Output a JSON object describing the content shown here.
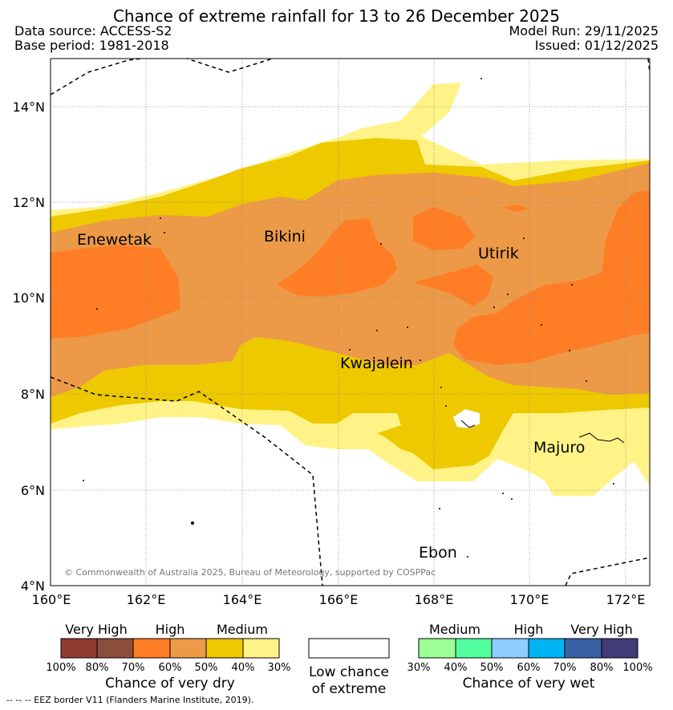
{
  "header": {
    "title": "Chance of extreme rainfall for 13 to 26 December 2025",
    "data_source": "Data source: ACCESS-S2",
    "base_period": "Base period: 1981-2018",
    "model_run": "Model Run: 29/11/2025",
    "issued": "Issued: 01/12/2025"
  },
  "map": {
    "lat_labels": [
      "14°N",
      "12°N",
      "10°N",
      "8°N",
      "6°N",
      "4°N"
    ],
    "lon_labels": [
      "160°E",
      "162°E",
      "164°E",
      "166°E",
      "168°E",
      "170°E",
      "172°E"
    ],
    "places": [
      "Enewetak",
      "Bikini",
      "Utirik",
      "Kwajalein",
      "Majuro",
      "Ebon"
    ],
    "copyright": "© Commonwealth of Australia 2025, Bureau of Meteorology, supported by COSPPac"
  },
  "legend": {
    "dry": {
      "levels": [
        "Very High",
        "High",
        "Medium"
      ],
      "ticks": [
        "100%",
        "80%",
        "70%",
        "60%",
        "50%",
        "40%",
        "30%"
      ],
      "caption": "Chance of very dry",
      "colors": [
        "#8f3b2f",
        "#8c4e3c",
        "#ff7d25",
        "#ec9a48",
        "#eec900",
        "#fff387"
      ]
    },
    "low": {
      "caption_line1": "Low chance",
      "caption_line2": "of extreme"
    },
    "wet": {
      "levels": [
        "Medium",
        "High",
        "Very High"
      ],
      "ticks": [
        "30%",
        "40%",
        "50%",
        "60%",
        "70%",
        "80%",
        "100%"
      ],
      "caption": "Chance of very wet",
      "colors": [
        "#9cff96",
        "#52ff9e",
        "#8dcdff",
        "#00b3f3",
        "#3962a4",
        "#403c78"
      ]
    }
  },
  "footnote": "--  --  -- EEZ border V11 (Flanders Marine Institute, 2019)."
}
